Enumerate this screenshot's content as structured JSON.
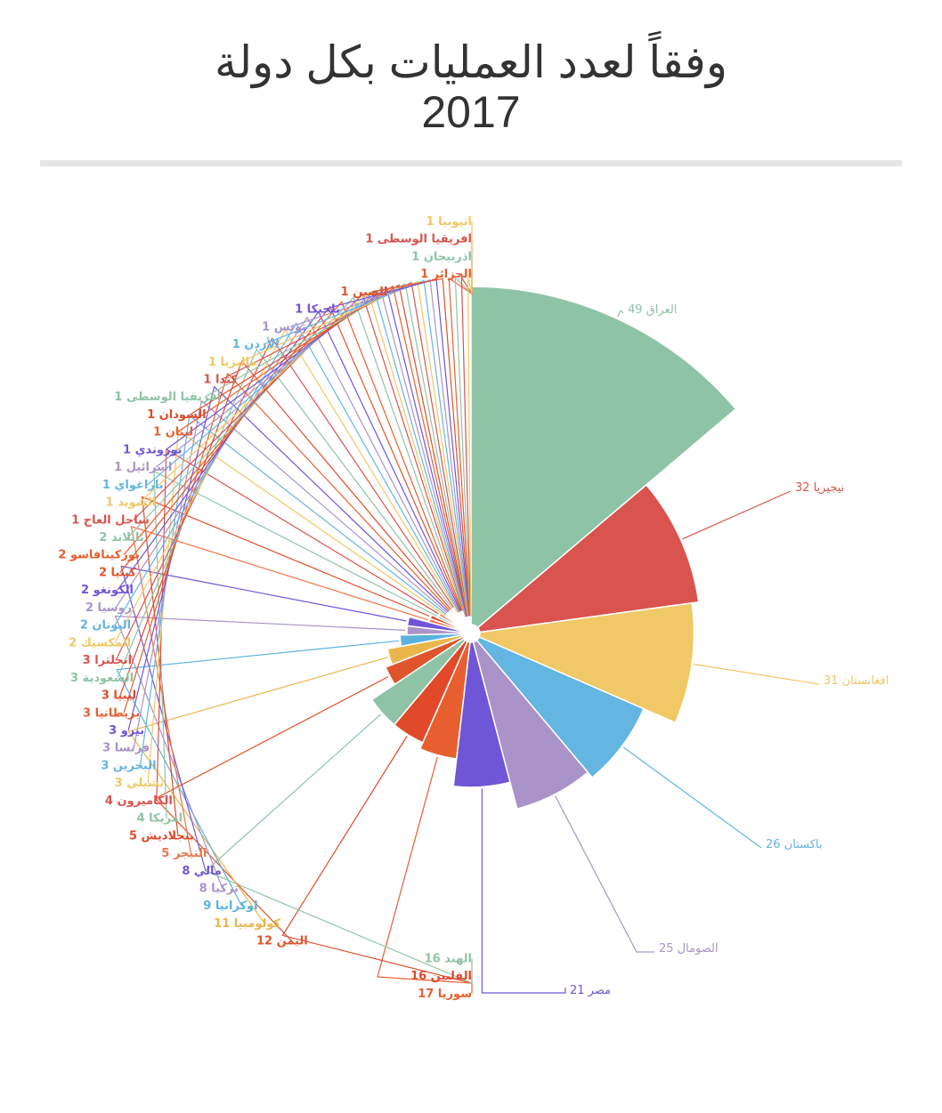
{
  "title": {
    "line1": "وفقاً لعدد العمليات بكل دولة",
    "line2": "2017"
  },
  "chart_data": {
    "type": "pie",
    "variant": "rose",
    "grid": false,
    "legend": "none",
    "categories": [
      "العراق",
      "نيجيريا",
      "افغانستان",
      "باكستان",
      "الصومال",
      "مصر",
      "سوريا",
      "الفلبين",
      "الهند",
      "اليمن",
      "كولومبيا",
      "اوكرانيا",
      "تركيا",
      "مالي",
      "النيجر",
      "بنجلاديش",
      "امريكا",
      "الكاميرون",
      "تشيلي",
      "البحرين",
      "فرنسا",
      "بيرو",
      "بريطانيا",
      "ليبيا",
      "السعودية",
      "انجلترا",
      "المكسيك",
      "اليونان",
      "روسيا",
      "الكونغو",
      "كينيا",
      "بوركينافاسو",
      "تايلاند",
      "ساحل العاج",
      "السويد",
      "باراغواي",
      "اسرائيل",
      "بوروندي",
      "لبنان",
      "السودان",
      "افريقيا الوسطى",
      "كندا",
      "ماليزيا",
      "الأردن",
      "تونس",
      "بلجيكا",
      "الصين",
      "الجزائر",
      "اذربيجان",
      "افريقيا الوسطى",
      "اثيوبيا"
    ],
    "values": [
      49,
      32,
      31,
      26,
      25,
      21,
      17,
      16,
      16,
      12,
      11,
      9,
      8,
      8,
      5,
      5,
      4,
      4,
      3,
      3,
      3,
      3,
      3,
      3,
      3,
      3,
      2,
      2,
      2,
      2,
      2,
      2,
      2,
      1,
      1,
      1,
      1,
      1,
      1,
      1,
      1,
      1,
      1,
      1,
      1,
      1,
      1,
      1,
      1,
      1,
      1
    ],
    "labels": [
      "العراق 49",
      "نيجيريا 32",
      "افغانستان 31",
      "باكستان 26",
      "الصومال 25",
      "مصر 21",
      "سوريا 17",
      "الفلبين 16",
      "الهند 16",
      "اليمن 12",
      "كولومبيا 11",
      "اوكرانيا 9",
      "تركيا 8",
      "مالي 8",
      "النيجر 5",
      "بنجلاديش 5",
      "امريكا 4",
      "الكاميرون 4",
      "تشيلي 3",
      "البحرين 3",
      "فرنسا 3",
      "بيرو 3",
      "بريطانيا 3",
      "ليبيا 3",
      "السعودية 3",
      "انجلترا 3",
      "المكسيك 2",
      "اليونان 2",
      "روسيا 2",
      "الكونغو 2",
      "كينيا 2",
      "بوركينافاسو 2",
      "تايلاند 2",
      "ساحل العاج 1",
      "السويد 1",
      "باراغواي 1",
      "اسرائيل 1",
      "بوروندي 1",
      "لبنان 1",
      "السودان 1",
      "افريقيا الوسطى 1",
      "كندا 1",
      "ماليزيا 1",
      "الأردن 1",
      "تونس 1",
      "بلجيكا 1",
      "الصين 1",
      "الجزائر 1",
      "اذربيجان 1",
      "افريقيا الوسطى 1",
      "اثيوبيا 1"
    ],
    "palette": [
      "#8fc3a6",
      "#d9534f",
      "#f0c865",
      "#63b5e2",
      "#a993c8",
      "#6f56d6",
      "#e85f2f",
      "#e04a2a",
      "#8fc3a6",
      "#e0542c",
      "#eab54a",
      "#5bb2de",
      "#a993c8",
      "#6f56d6",
      "#f0734a",
      "#e04a2a",
      "#8fc3a6",
      "#d9534f",
      "#f0c865",
      "#63b5e2",
      "#a993c8",
      "#6f56d6",
      "#e85f2f",
      "#e04a2a",
      "#8fc3a6",
      "#d9534f",
      "#f0c865",
      "#63b5e2",
      "#a993c8",
      "#6f56d6",
      "#e0542c",
      "#e85f2f",
      "#8fc3a6",
      "#d9534f",
      "#f0c865",
      "#63b5e2",
      "#a993c8",
      "#6f56d6",
      "#e85f2f",
      "#e04a2a",
      "#8fc3a6",
      "#d9534f",
      "#f0c865",
      "#63b5e2",
      "#a993c8",
      "#6f56d6",
      "#e0542c",
      "#e85f2f",
      "#8fc3a6",
      "#d9534f",
      "#f0c865"
    ]
  }
}
